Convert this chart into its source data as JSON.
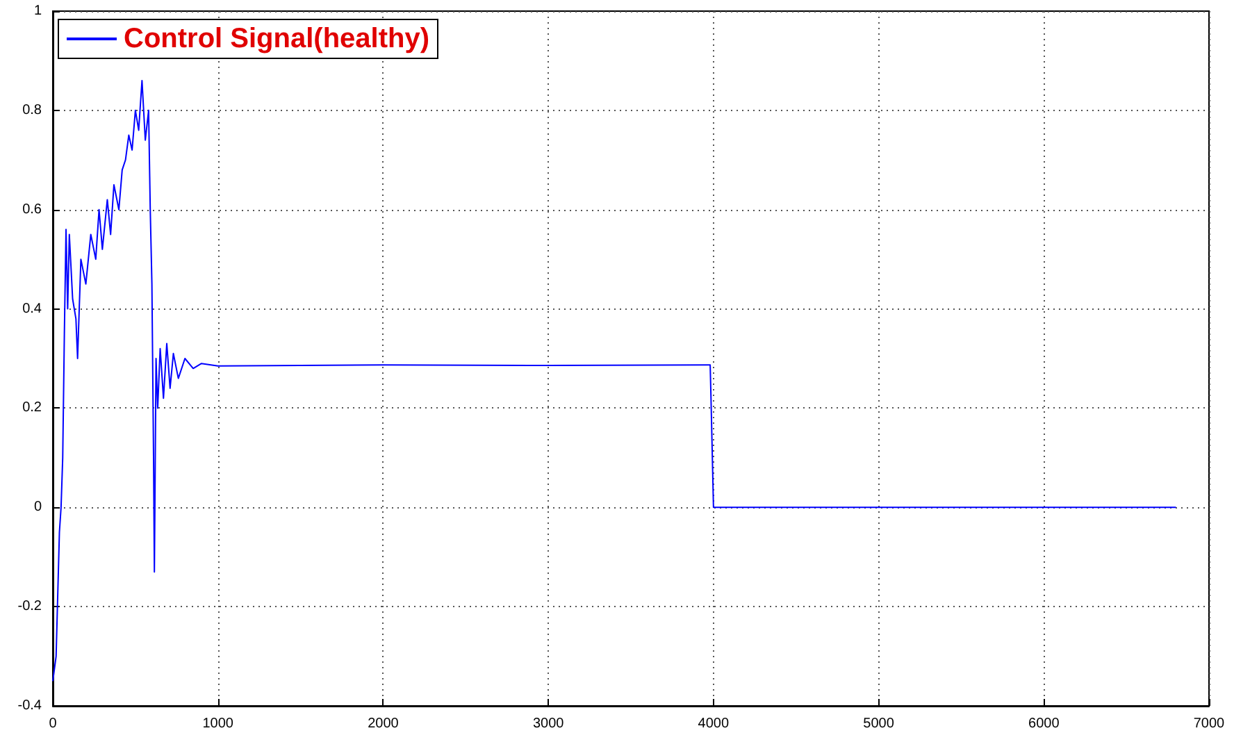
{
  "chart_data": {
    "type": "line",
    "xlim": [
      0,
      7000
    ],
    "xticks": [
      0,
      1000,
      2000,
      3000,
      4000,
      5000,
      6000,
      7000
    ],
    "ylim": [
      -0.4,
      1
    ],
    "yticks": [
      -0.4,
      -0.2,
      0,
      0.2,
      0.4,
      0.6,
      0.8,
      1
    ],
    "grid": true,
    "legend": "top left",
    "marker": "none",
    "line_style": "solid",
    "series": [
      {
        "name": "Control Signal(healthy)",
        "color": "#0000ff",
        "x": [
          0,
          20,
          40,
          50,
          60,
          70,
          80,
          90,
          100,
          120,
          140,
          150,
          170,
          200,
          230,
          260,
          280,
          300,
          330,
          350,
          370,
          400,
          420,
          440,
          460,
          480,
          500,
          520,
          540,
          560,
          580,
          590,
          600,
          610,
          615,
          625,
          635,
          650,
          670,
          690,
          710,
          730,
          760,
          800,
          850,
          900,
          1000,
          2000,
          3000,
          3980,
          3985,
          4000,
          6800
        ],
        "values": [
          -0.35,
          -0.3,
          -0.05,
          0.0,
          0.1,
          0.35,
          0.56,
          0.4,
          0.55,
          0.42,
          0.38,
          0.3,
          0.5,
          0.45,
          0.55,
          0.5,
          0.6,
          0.52,
          0.62,
          0.55,
          0.65,
          0.6,
          0.68,
          0.7,
          0.75,
          0.72,
          0.8,
          0.76,
          0.86,
          0.74,
          0.8,
          0.6,
          0.45,
          0.1,
          -0.13,
          0.3,
          0.2,
          0.32,
          0.22,
          0.33,
          0.24,
          0.31,
          0.26,
          0.3,
          0.28,
          0.29,
          0.285,
          0.287,
          0.286,
          0.287,
          0.22,
          0,
          0
        ]
      }
    ]
  }
}
